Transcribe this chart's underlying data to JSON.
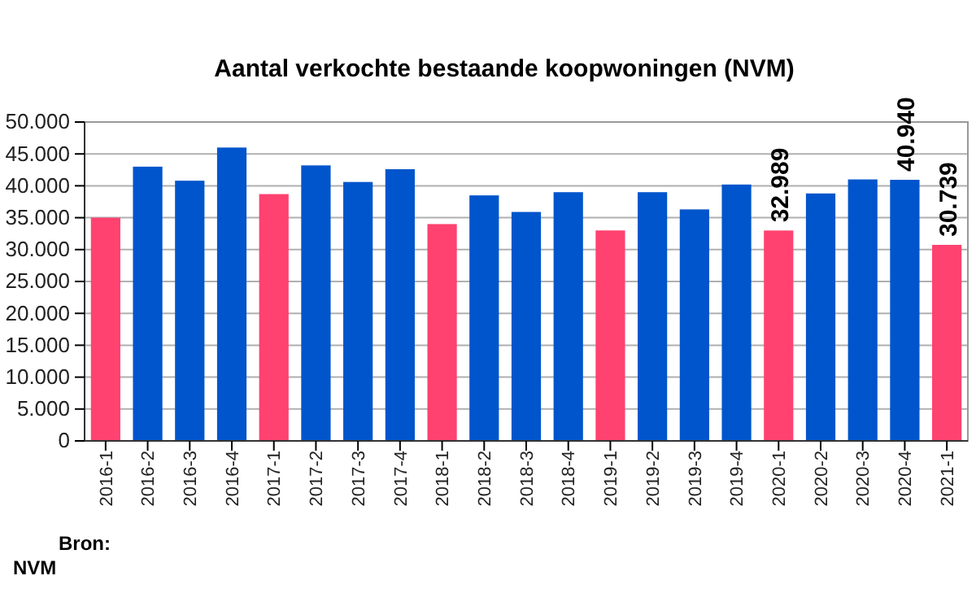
{
  "chart_data": {
    "type": "bar",
    "title": "Aantal verkochte bestaande koopwoningen (NVM)",
    "categories": [
      "2016-1",
      "2016-2",
      "2016-3",
      "2016-4",
      "2017-1",
      "2017-2",
      "2017-3",
      "2017-4",
      "2018-1",
      "2018-2",
      "2018-3",
      "2018-4",
      "2019-1",
      "2019-2",
      "2019-3",
      "2019-4",
      "2020-1",
      "2020-2",
      "2020-3",
      "2020-4",
      "2021-1"
    ],
    "values": [
      35000,
      43000,
      40800,
      46000,
      38700,
      43200,
      40600,
      42600,
      34000,
      38500,
      35900,
      39000,
      33000,
      39000,
      36300,
      40200,
      32989,
      38800,
      41000,
      40940,
      30739
    ],
    "colors": [
      "#ff4270",
      "#0055cc",
      "#0055cc",
      "#0055cc",
      "#ff4270",
      "#0055cc",
      "#0055cc",
      "#0055cc",
      "#ff4270",
      "#0055cc",
      "#0055cc",
      "#0055cc",
      "#ff4270",
      "#0055cc",
      "#0055cc",
      "#0055cc",
      "#ff4270",
      "#0055cc",
      "#0055cc",
      "#0055cc",
      "#ff4270"
    ],
    "value_labels": [
      null,
      null,
      null,
      null,
      null,
      null,
      null,
      null,
      null,
      null,
      null,
      null,
      null,
      null,
      null,
      null,
      "32.989",
      null,
      null,
      "40.940",
      "30.739"
    ],
    "ylim": [
      0,
      50000
    ],
    "yticks": [
      {
        "value": 0,
        "label": "0"
      },
      {
        "value": 5000,
        "label": "5.000"
      },
      {
        "value": 10000,
        "label": "10.000"
      },
      {
        "value": 15000,
        "label": "15.000"
      },
      {
        "value": 20000,
        "label": "20.000"
      },
      {
        "value": 25000,
        "label": "25.000"
      },
      {
        "value": 30000,
        "label": "30.000"
      },
      {
        "value": 35000,
        "label": "35.000"
      },
      {
        "value": 40000,
        "label": "40.000"
      },
      {
        "value": 45000,
        "label": "45.000"
      },
      {
        "value": 50000,
        "label": "50.000"
      }
    ],
    "grid": "y",
    "annotations": [
      "Bron:\nNVM"
    ]
  }
}
